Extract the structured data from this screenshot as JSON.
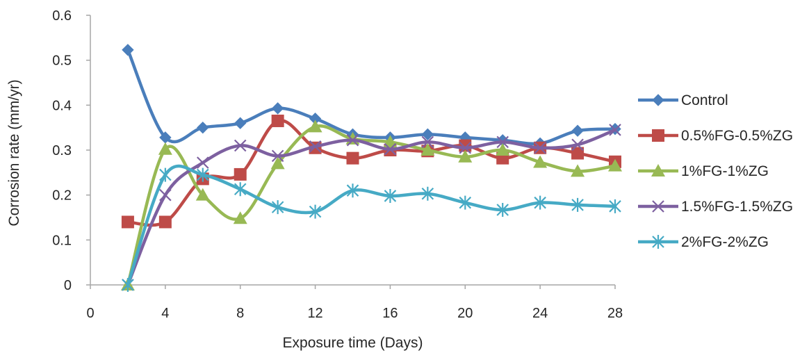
{
  "chart_data": {
    "type": "line",
    "title": "",
    "xlabel": "Exposure time (Days)",
    "ylabel": "Corrosion rate (mm/yr)",
    "xlim": [
      0,
      28
    ],
    "ylim": [
      0,
      0.6
    ],
    "x_ticks": [
      "0",
      "4",
      "8",
      "12",
      "16",
      "20",
      "24",
      "28"
    ],
    "y_ticks": [
      "0",
      "0.1",
      "0.2",
      "0.3",
      "0.4",
      "0.5",
      "0.6"
    ],
    "grid": false,
    "smooth": true,
    "legend_position": "right",
    "x": [
      2,
      4,
      6,
      8,
      10,
      12,
      14,
      16,
      18,
      20,
      22,
      24,
      26,
      28
    ],
    "series": [
      {
        "name": "Control",
        "color": "#4a7ebb",
        "marker": "diamond",
        "values": [
          0.523,
          0.328,
          0.35,
          0.36,
          0.393,
          0.37,
          0.335,
          0.328,
          0.335,
          0.328,
          0.322,
          0.315,
          0.343,
          0.347
        ]
      },
      {
        "name": "0.5%FG-0.5%ZG",
        "color": "#be4b48",
        "marker": "square",
        "values": [
          0.14,
          0.14,
          0.236,
          0.246,
          0.365,
          0.305,
          0.282,
          0.3,
          0.298,
          0.31,
          0.282,
          0.305,
          0.293,
          0.274
        ]
      },
      {
        "name": "1%FG-1%ZG",
        "color": "#98b954",
        "marker": "triangle",
        "values": [
          0.0,
          0.302,
          0.2,
          0.148,
          0.27,
          0.352,
          0.325,
          0.318,
          0.3,
          0.285,
          0.3,
          0.273,
          0.253,
          0.265
        ]
      },
      {
        "name": "1.5%FG-1.5%ZG",
        "color": "#7d60a0",
        "marker": "x",
        "values": [
          0.0,
          0.2,
          0.272,
          0.31,
          0.287,
          0.308,
          0.322,
          0.302,
          0.318,
          0.305,
          0.318,
          0.305,
          0.312,
          0.345
        ]
      },
      {
        "name": "2%FG-2%ZG",
        "color": "#46aac5",
        "marker": "star",
        "values": [
          0.0,
          0.245,
          0.245,
          0.213,
          0.173,
          0.163,
          0.21,
          0.198,
          0.203,
          0.183,
          0.167,
          0.183,
          0.178,
          0.175
        ]
      }
    ]
  }
}
